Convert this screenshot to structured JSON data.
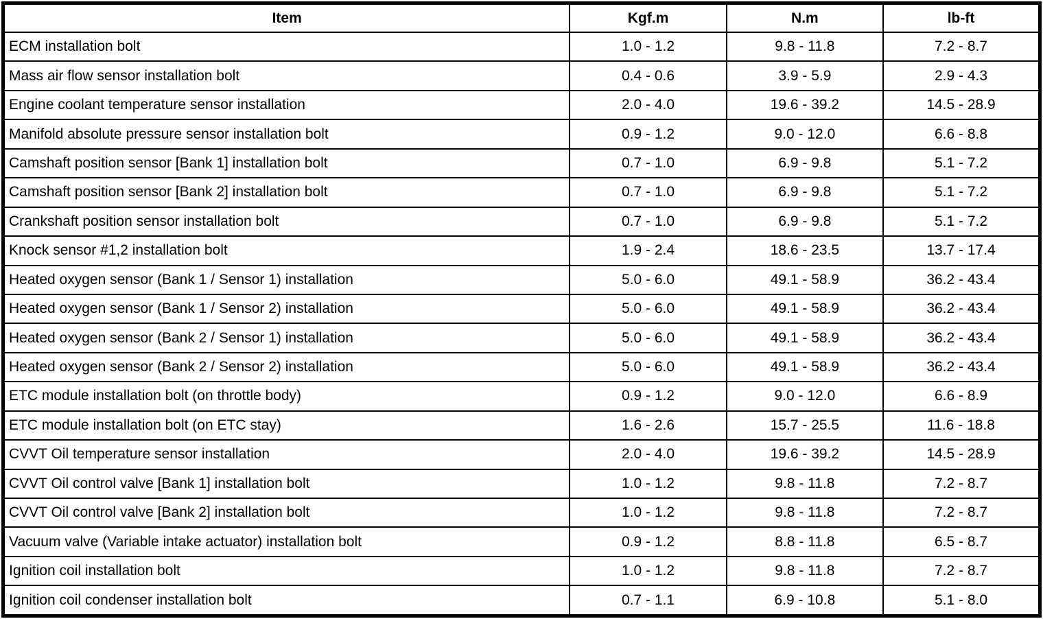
{
  "table": {
    "columns": [
      "Item",
      "Kgf.m",
      "N.m",
      "lb-ft"
    ],
    "rows": [
      {
        "item": "ECM installation bolt",
        "kgfm": "1.0 - 1.2",
        "nm": "9.8 - 11.8",
        "lbft": "7.2 - 8.7"
      },
      {
        "item": "Mass air flow sensor installation bolt",
        "kgfm": "0.4 - 0.6",
        "nm": "3.9 - 5.9",
        "lbft": "2.9 - 4.3"
      },
      {
        "item": "Engine coolant temperature sensor installation",
        "kgfm": "2.0 - 4.0",
        "nm": "19.6 - 39.2",
        "lbft": "14.5 - 28.9"
      },
      {
        "item": "Manifold absolute pressure sensor installation bolt",
        "kgfm": "0.9 - 1.2",
        "nm": "9.0 - 12.0",
        "lbft": "6.6 - 8.8"
      },
      {
        "item": "Camshaft position sensor [Bank 1] installation bolt",
        "kgfm": "0.7 - 1.0",
        "nm": "6.9 - 9.8",
        "lbft": "5.1 - 7.2"
      },
      {
        "item": "Camshaft position sensor [Bank 2] installation bolt",
        "kgfm": "0.7 - 1.0",
        "nm": "6.9 - 9.8",
        "lbft": "5.1 - 7.2"
      },
      {
        "item": "Crankshaft position sensor installation bolt",
        "kgfm": "0.7 - 1.0",
        "nm": "6.9 - 9.8",
        "lbft": "5.1 - 7.2"
      },
      {
        "item": "Knock sensor #1,2 installation bolt",
        "kgfm": "1.9 - 2.4",
        "nm": "18.6 - 23.5",
        "lbft": "13.7 - 17.4"
      },
      {
        "item": "Heated oxygen sensor (Bank 1 / Sensor 1) installation",
        "kgfm": "5.0 - 6.0",
        "nm": "49.1 - 58.9",
        "lbft": "36.2 - 43.4"
      },
      {
        "item": "Heated oxygen sensor (Bank 1 / Sensor 2) installation",
        "kgfm": "5.0 - 6.0",
        "nm": "49.1 - 58.9",
        "lbft": "36.2 - 43.4"
      },
      {
        "item": "Heated oxygen sensor (Bank 2 / Sensor 1) installation",
        "kgfm": "5.0 - 6.0",
        "nm": "49.1 - 58.9",
        "lbft": "36.2 - 43.4"
      },
      {
        "item": "Heated oxygen sensor (Bank 2 / Sensor 2) installation",
        "kgfm": "5.0 - 6.0",
        "nm": "49.1 - 58.9",
        "lbft": "36.2 - 43.4"
      },
      {
        "item": "ETC module installation bolt (on throttle body)",
        "kgfm": "0.9 - 1.2",
        "nm": "9.0 - 12.0",
        "lbft": "6.6 - 8.9"
      },
      {
        "item": "ETC module installation bolt (on ETC stay)",
        "kgfm": "1.6 - 2.6",
        "nm": "15.7 - 25.5",
        "lbft": "11.6 - 18.8"
      },
      {
        "item": "CVVT Oil temperature sensor installation",
        "kgfm": "2.0 - 4.0",
        "nm": "19.6 - 39.2",
        "lbft": "14.5 - 28.9"
      },
      {
        "item": "CVVT Oil control valve [Bank 1] installation bolt",
        "kgfm": "1.0 - 1.2",
        "nm": "9.8 - 11.8",
        "lbft": "7.2 - 8.7"
      },
      {
        "item": "CVVT Oil control valve [Bank 2] installation bolt",
        "kgfm": "1.0 - 1.2",
        "nm": "9.8 - 11.8",
        "lbft": "7.2 - 8.7"
      },
      {
        "item": "Vacuum valve (Variable intake actuator) installation bolt",
        "kgfm": "0.9 - 1.2",
        "nm": "8.8 - 11.8",
        "lbft": "6.5 - 8.7"
      },
      {
        "item": "Ignition coil installation bolt",
        "kgfm": "1.0 - 1.2",
        "nm": "9.8 - 11.8",
        "lbft": "7.2 - 8.7"
      },
      {
        "item": "Ignition coil condenser installation bolt",
        "kgfm": "0.7 - 1.1",
        "nm": "6.9 - 10.8",
        "lbft": "5.1 - 8.0"
      }
    ]
  }
}
